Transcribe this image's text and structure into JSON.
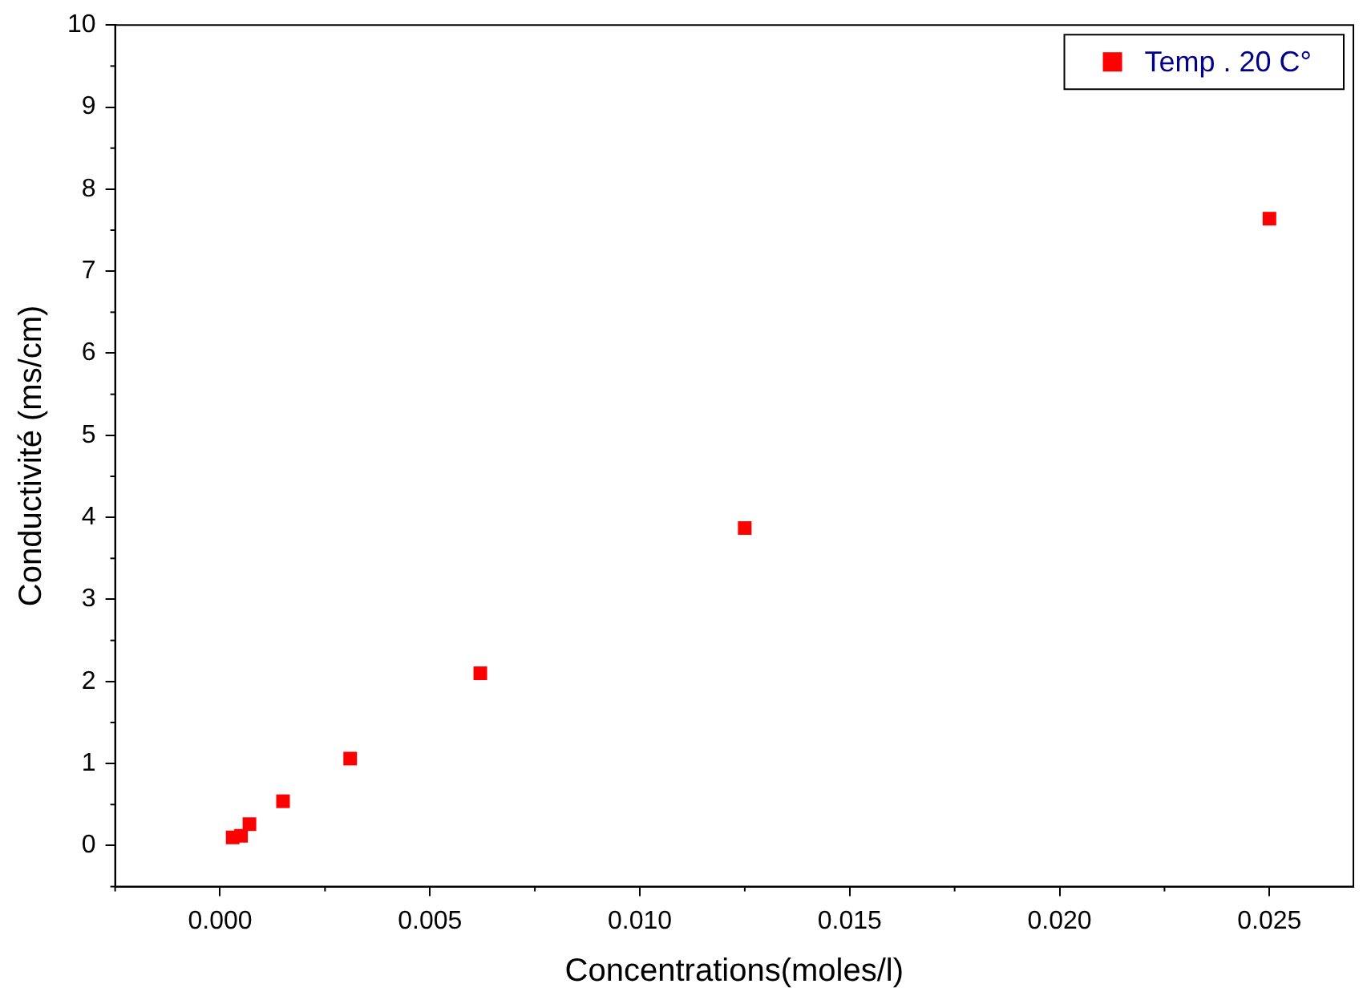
{
  "chart_data": {
    "type": "scatter",
    "xlabel": "Concentrations(moles/l)",
    "ylabel": "Conductivité (ms/cm)",
    "x": [
      0.0003,
      0.0005,
      0.0007,
      0.0015,
      0.0031,
      0.0062,
      0.0125,
      0.025
    ],
    "series": [
      {
        "name": "Temp . 20 C°",
        "color": "#ff0000",
        "values": [
          0.1,
          0.12,
          0.26,
          0.54,
          1.06,
          2.1,
          3.87,
          7.64
        ]
      }
    ],
    "xlim": [
      -0.0025,
      0.027
    ],
    "xticks": [
      {
        "value": 0,
        "label": "0.000"
      },
      {
        "value": 0.005,
        "label": "0.005"
      },
      {
        "value": 0.01,
        "label": "0.010"
      },
      {
        "value": 0.015,
        "label": "0.015"
      },
      {
        "value": 0.02,
        "label": "0.020"
      },
      {
        "value": 0.025,
        "label": "0.025"
      }
    ],
    "ylim": [
      -0.5,
      10
    ],
    "yticks": [
      0,
      1,
      2,
      3,
      4,
      5,
      6,
      7,
      8,
      9,
      10
    ],
    "marker": "square",
    "legend": "top right",
    "grid": false
  }
}
